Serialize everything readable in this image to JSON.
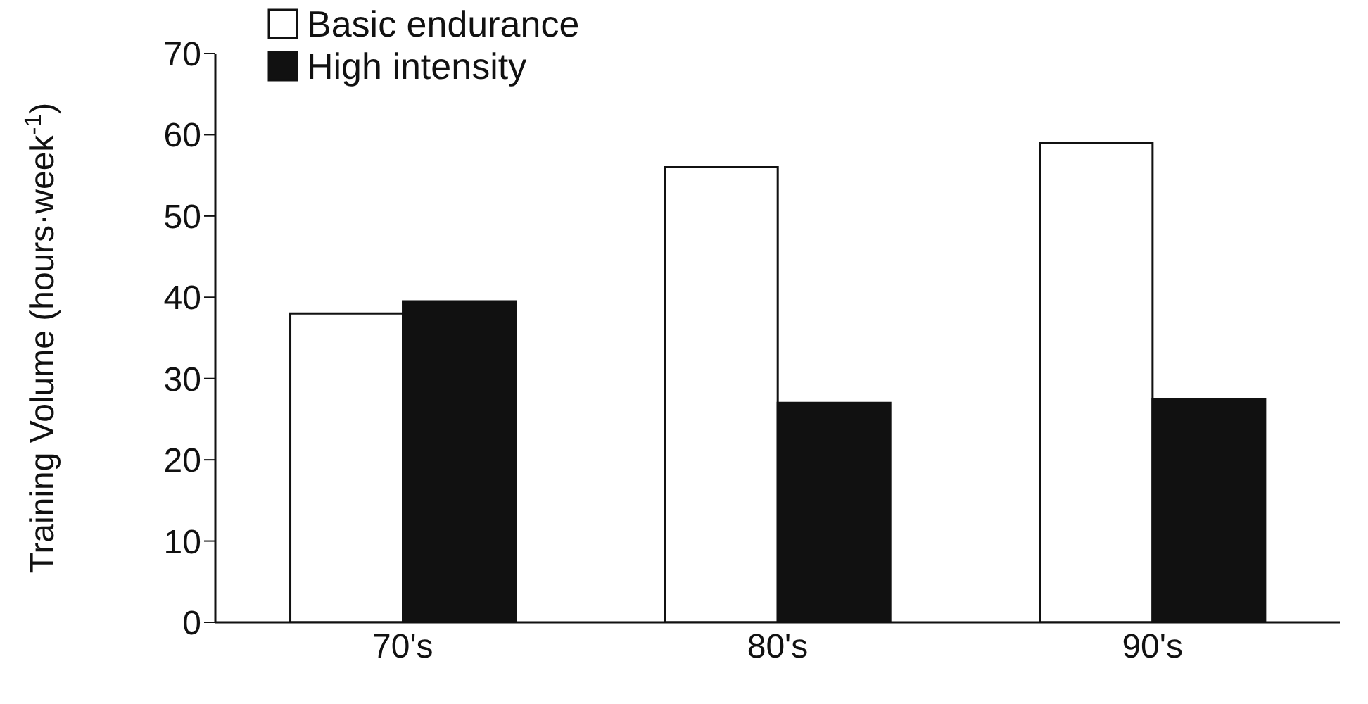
{
  "chart_data": {
    "type": "bar",
    "ylabel": "Training Volume (hours·week$^{-1}$)",
    "categories": [
      "70's",
      "80's",
      "90's"
    ],
    "series": [
      {
        "name": "Basic endurance",
        "color": "#ffffff",
        "values": [
          38,
          56,
          59
        ]
      },
      {
        "name": "High intensity",
        "color": "#111111",
        "values": [
          39.5,
          27,
          27.5
        ]
      }
    ],
    "ylim": [
      0,
      70
    ],
    "yticks": [
      0,
      10,
      20,
      30,
      40,
      50,
      60,
      70
    ],
    "grid": false,
    "legend": "top left"
  }
}
